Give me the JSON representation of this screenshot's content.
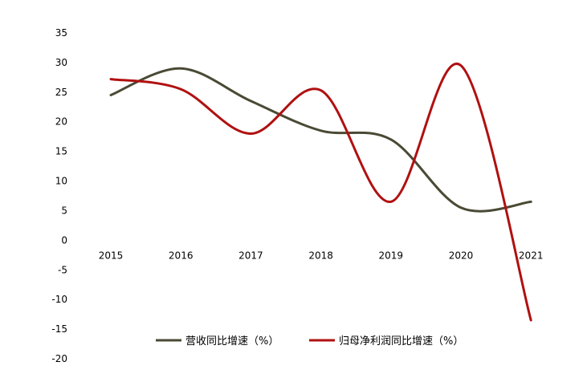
{
  "chart_data": {
    "type": "line",
    "categories": [
      "2015",
      "2016",
      "2017",
      "2018",
      "2019",
      "2020",
      "2021"
    ],
    "series": [
      {
        "name": "营收同比增速（%）",
        "values": [
          24.5,
          29,
          23.5,
          18.5,
          17,
          5.5,
          6.5
        ],
        "color": "#4a4a35"
      },
      {
        "name": "归母净利润同比增速（%）",
        "values": [
          27.2,
          25.5,
          18,
          25.3,
          6.5,
          29.5,
          -13.5
        ],
        "color": "#b01010"
      }
    ],
    "ylim": [
      -20,
      35
    ],
    "yticks": [
      "35",
      "30",
      "25",
      "20",
      "15",
      "10",
      "5",
      "0",
      "-5",
      "-10",
      "-15",
      "-20"
    ],
    "grid": false,
    "legend": "bottom"
  }
}
